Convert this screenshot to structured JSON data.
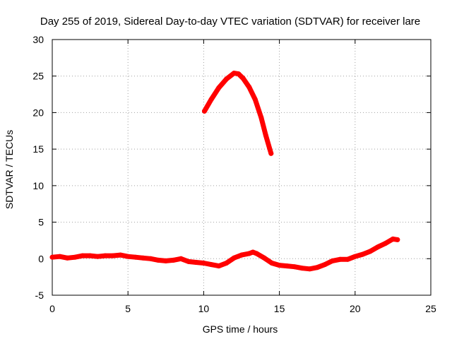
{
  "chart_data": {
    "type": "line",
    "title": "Day 255 of 2019, Sidereal Day-to-day VTEC variation (SDTVAR) for receiver lare",
    "xlabel": "GPS time / hours",
    "ylabel": "SDTVAR / TECUs",
    "xlim": [
      0,
      25
    ],
    "ylim": [
      -5,
      30
    ],
    "xticks": [
      0,
      5,
      10,
      15,
      20,
      25
    ],
    "yticks": [
      -5,
      0,
      5,
      10,
      15,
      20,
      25,
      30
    ],
    "grid": true,
    "series": [
      {
        "name": "lower-trace",
        "color": "#ff0000",
        "x": [
          0,
          0.5,
          1,
          1.5,
          2,
          2.5,
          3,
          3.5,
          4,
          4.5,
          5,
          5.5,
          6,
          6.5,
          7,
          7.5,
          8,
          8.5,
          9,
          9.5,
          10,
          10.5,
          11,
          11.5,
          12,
          12.5,
          13,
          13.25,
          13.5,
          14,
          14.5,
          15,
          15.5,
          16,
          16.5,
          17,
          17.5,
          18,
          18.5,
          19,
          19.5,
          20,
          20.5,
          21,
          21.5,
          22,
          22.5,
          22.8
        ],
        "y": [
          0.2,
          0.3,
          0.1,
          0.2,
          0.4,
          0.4,
          0.3,
          0.4,
          0.4,
          0.5,
          0.3,
          0.2,
          0.1,
          0.0,
          -0.2,
          -0.3,
          -0.2,
          0.0,
          -0.4,
          -0.5,
          -0.6,
          -0.8,
          -1.0,
          -0.6,
          0.1,
          0.5,
          0.7,
          0.9,
          0.7,
          0.1,
          -0.6,
          -0.9,
          -1.0,
          -1.1,
          -1.3,
          -1.4,
          -1.2,
          -0.8,
          -0.3,
          -0.1,
          -0.1,
          0.3,
          0.6,
          1.0,
          1.6,
          2.1,
          2.7,
          2.6
        ]
      },
      {
        "name": "upper-arc",
        "color": "#ff0000",
        "x": [
          10.05,
          10.5,
          11,
          11.5,
          12,
          12.3,
          12.6,
          13,
          13.4,
          13.8,
          14.1,
          14.45
        ],
        "y": [
          20.2,
          21.8,
          23.4,
          24.6,
          25.4,
          25.3,
          24.7,
          23.5,
          21.8,
          19.3,
          16.9,
          14.4
        ]
      }
    ]
  }
}
